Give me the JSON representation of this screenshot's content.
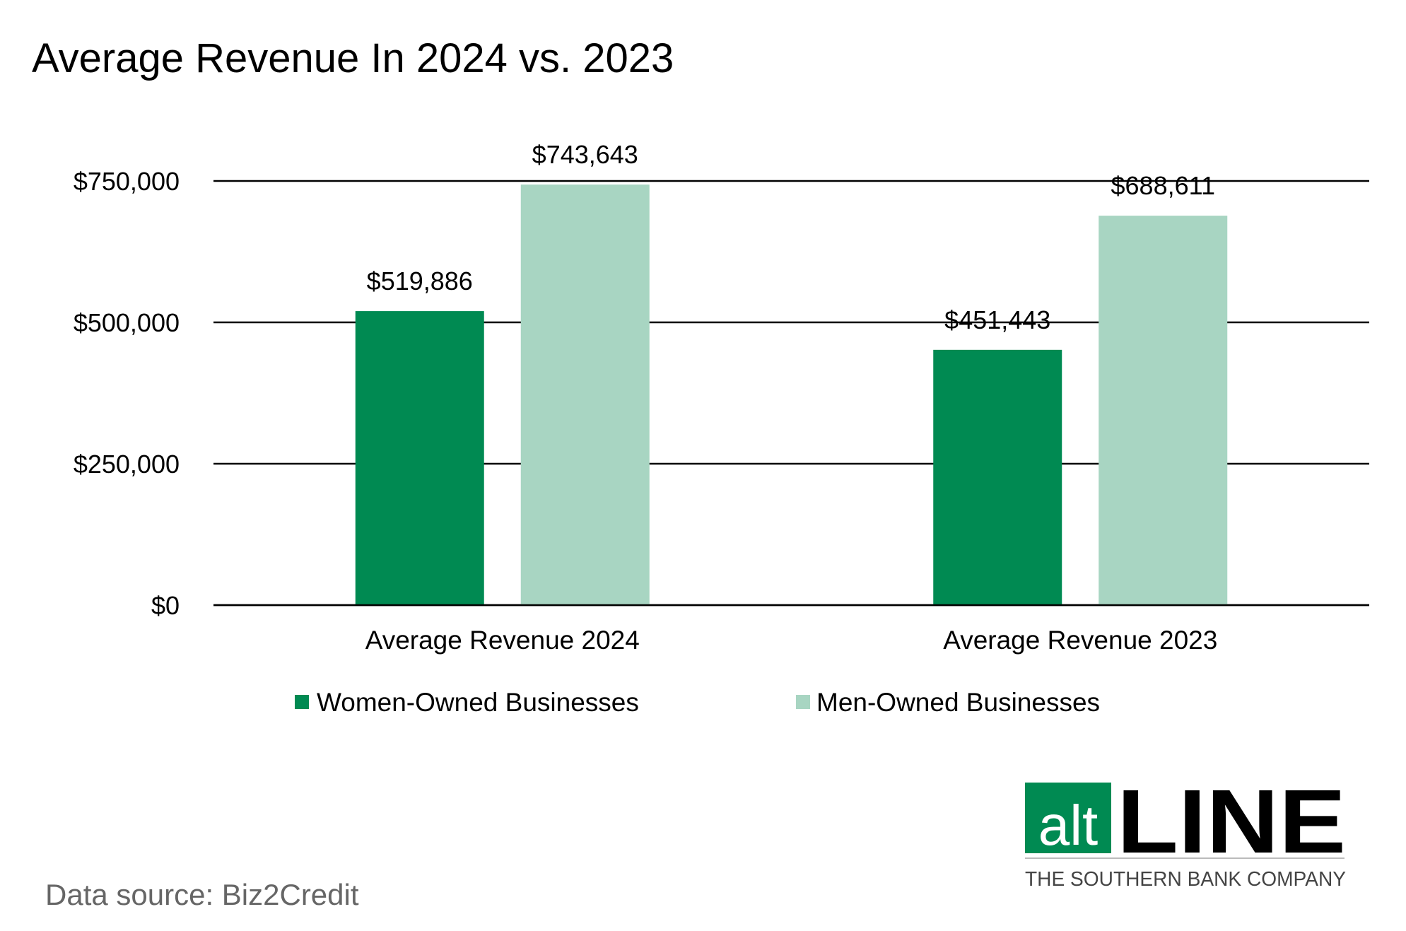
{
  "chart_data": {
    "type": "bar",
    "title": "Average Revenue In 2024 vs. 2023",
    "categories": [
      "Average Revenue 2024",
      "Average Revenue 2023"
    ],
    "series": [
      {
        "name": "Women-Owned Businesses",
        "color": "#008A52",
        "values": [
          519886,
          451443
        ],
        "labels": [
          "$519,886",
          "$451,443"
        ]
      },
      {
        "name": "Men-Owned Businesses",
        "color": "#A8D5C2",
        "values": [
          743643,
          688611
        ],
        "labels": [
          "$743,643",
          "$688,611"
        ]
      }
    ],
    "ylim": [
      0,
      750000
    ],
    "yticks": [
      0,
      250000,
      500000,
      750000
    ],
    "ytick_labels": [
      "$0",
      "$250,000",
      "$500,000",
      "$750,000"
    ],
    "grid": true,
    "legend": "bottom"
  },
  "source": "Data source: Biz2Credit",
  "logo": {
    "alt": "alt",
    "line": "LINE",
    "tagline": "THE SOUTHERN BANK COMPANY",
    "color": "#008A52"
  }
}
